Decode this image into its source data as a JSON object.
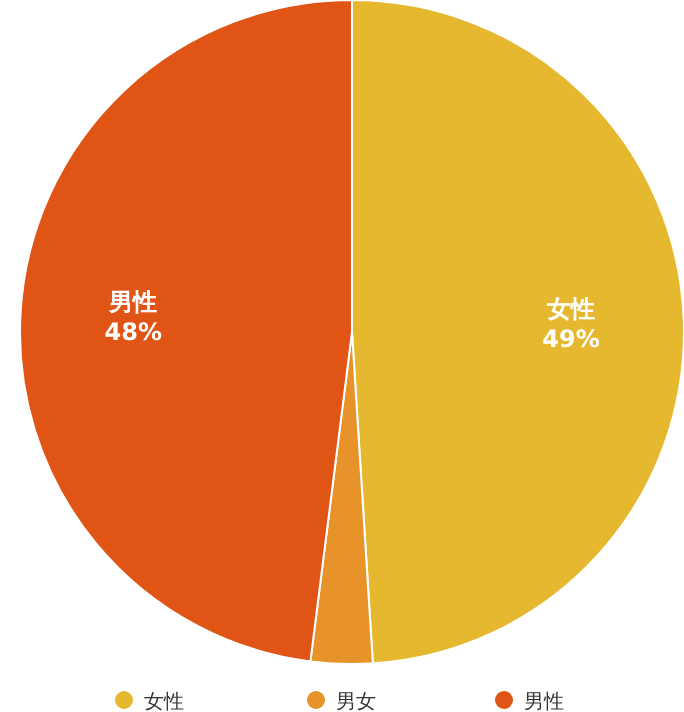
{
  "chart_data": {
    "type": "pie",
    "categories": [
      "女性",
      "男女",
      "男性"
    ],
    "values": [
      49,
      3,
      48
    ],
    "colors": [
      "#e5b82f",
      "#e8932a",
      "#e05416"
    ],
    "value_labels": [
      "49%",
      null,
      "48%"
    ],
    "legend": "bottom"
  }
}
